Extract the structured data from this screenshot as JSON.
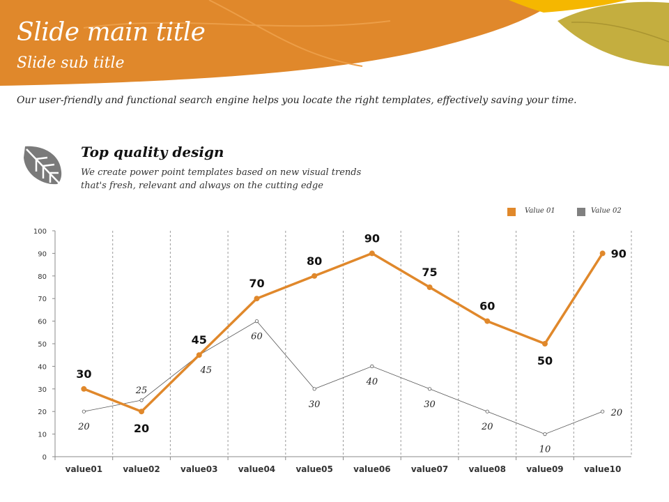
{
  "header": {
    "title": "Slide main title",
    "subtitle": "Slide sub title"
  },
  "intro_text": "Our user-friendly and functional  search engine helps you locate the right templates, effectively saving your time.",
  "feature": {
    "icon": "leaf-icon",
    "title": "Top quality design",
    "text": "We create power point templates based on new visual trends that's fresh, relevant and always on the cutting edge"
  },
  "colors": {
    "accent": "#E0882B",
    "secondary": "#808080",
    "olive": "#C4AE3F",
    "yellow": "#F5B700"
  },
  "chart_data": {
    "type": "line",
    "categories": [
      "value01",
      "value02",
      "value03",
      "value04",
      "value05",
      "value06",
      "value07",
      "value08",
      "value09",
      "value10"
    ],
    "series": [
      {
        "name": "Value 01",
        "values": [
          30,
          20,
          45,
          70,
          80,
          90,
          75,
          60,
          50,
          90
        ],
        "color": "#E0882B"
      },
      {
        "name": "Value 02",
        "values": [
          20,
          25,
          45,
          60,
          30,
          40,
          30,
          20,
          10,
          20
        ],
        "color": "#808080"
      }
    ],
    "ylim": [
      0,
      100
    ],
    "yticks": [
      0,
      10,
      20,
      30,
      40,
      50,
      60,
      70,
      80,
      90,
      100
    ],
    "legend_position": "top-right",
    "grid": "vertical dashed"
  }
}
